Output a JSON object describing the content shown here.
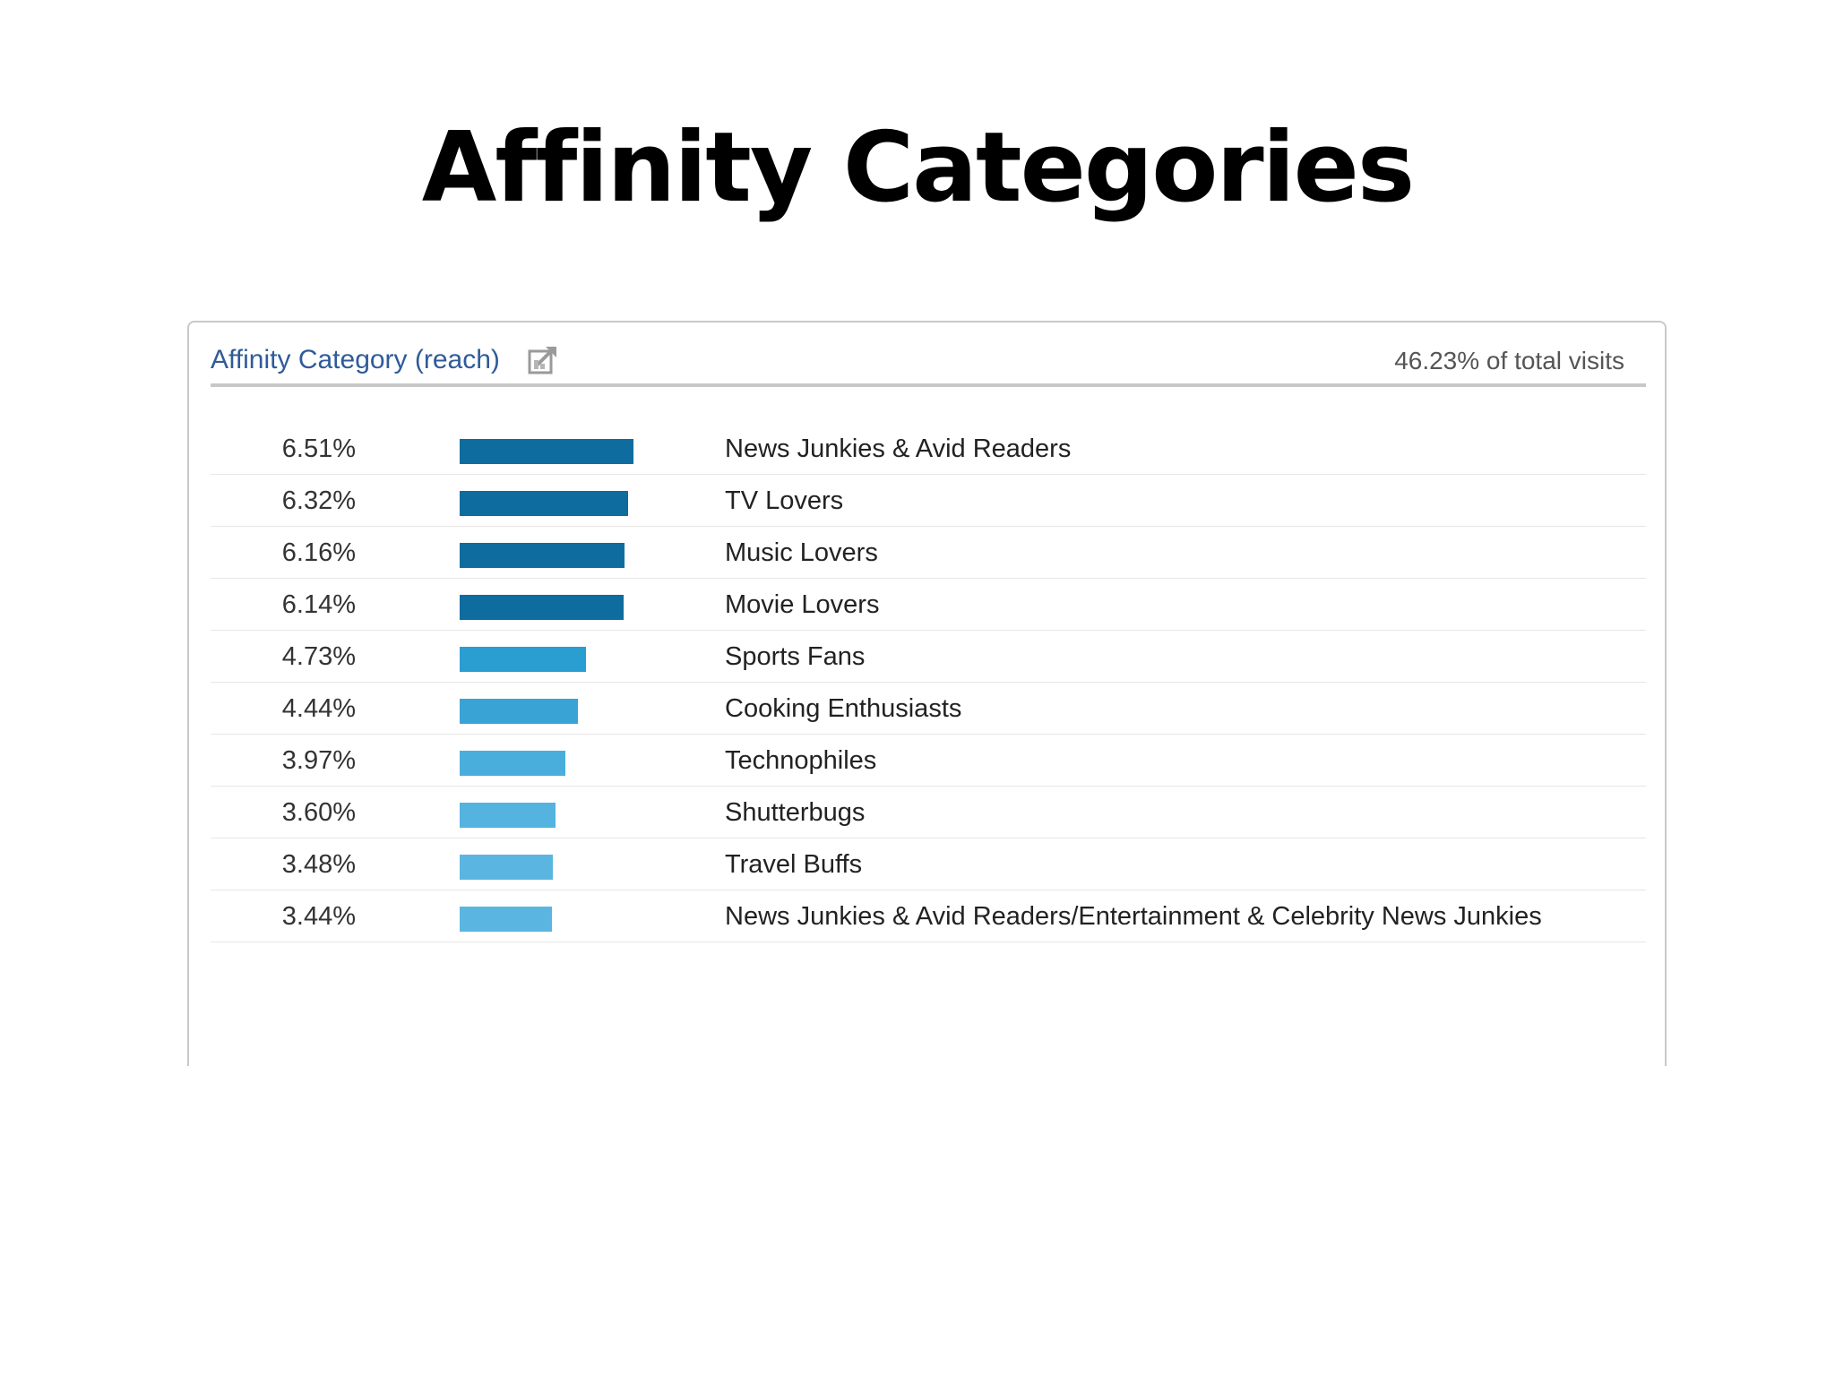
{
  "page": {
    "title": "Affinity Categories"
  },
  "panel": {
    "title": "Affinity Category (reach)",
    "export_icon": "export-icon",
    "total_visits": "46.23% of total visits"
  },
  "chart_data": {
    "type": "bar",
    "orientation": "horizontal",
    "title": "Affinity Category (reach)",
    "xlabel": "",
    "ylabel": "",
    "xlim": [
      0,
      6.51
    ],
    "grid": false,
    "categories": [
      "News Junkies & Avid Readers",
      "TV Lovers",
      "Music Lovers",
      "Movie Lovers",
      "Sports Fans",
      "Cooking Enthusiasts",
      "Technophiles",
      "Shutterbugs",
      "Travel Buffs",
      "News Junkies & Avid Readers/Entertainment & Celebrity News Junkies"
    ],
    "values": [
      6.51,
      6.32,
      6.16,
      6.14,
      4.73,
      4.44,
      3.97,
      3.6,
      3.48,
      3.44
    ],
    "value_labels": [
      "6.51%",
      "6.32%",
      "6.16%",
      "6.14%",
      "4.73%",
      "4.44%",
      "3.97%",
      "3.60%",
      "3.48%",
      "3.44%"
    ],
    "bar_colors": [
      "#0f6c9e",
      "#0f6c9e",
      "#0f6c9e",
      "#0f6c9e",
      "#2a9dd1",
      "#3aa3d6",
      "#4aaedc",
      "#55b3df",
      "#5ab6e0",
      "#5ab6e0"
    ]
  }
}
